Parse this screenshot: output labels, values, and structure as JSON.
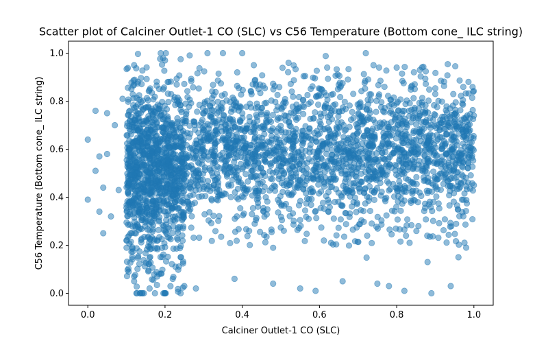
{
  "chart_data": {
    "type": "scatter",
    "title": "Scatter plot of Calciner Outlet-1 CO (SLC) vs C56 Temperature (Bottom cone_ ILC string)",
    "xlabel": "Calciner Outlet-1 CO (SLC)",
    "ylabel": "C56 Temperature (Bottom cone_ ILC string)",
    "xlim": [
      -0.05,
      1.05
    ],
    "ylim": [
      -0.05,
      1.05
    ],
    "xticks": [
      "0.0",
      "0.2",
      "0.4",
      "0.6",
      "0.8",
      "1.0"
    ],
    "yticks": [
      "0.0",
      "0.2",
      "0.4",
      "0.6",
      "0.8",
      "1.0"
    ],
    "grid": false,
    "marker_color": "#1f77b4",
    "marker_alpha": 0.5,
    "series": [
      {
        "points_approx": [
          [
            0.0,
            0.64
          ],
          [
            0.0,
            0.39
          ],
          [
            0.02,
            0.76
          ],
          [
            0.02,
            0.51
          ],
          [
            0.03,
            0.34
          ],
          [
            0.03,
            0.57
          ],
          [
            0.04,
            0.25
          ],
          [
            0.04,
            0.44
          ],
          [
            0.05,
            0.75
          ],
          [
            0.05,
            0.58
          ],
          [
            0.06,
            0.32
          ],
          [
            0.07,
            0.7
          ],
          [
            0.08,
            0.43
          ],
          [
            0.09,
            0.81
          ],
          [
            0.1,
            0.22
          ],
          [
            0.12,
            0.95
          ],
          [
            0.12,
            0.05
          ],
          [
            0.14,
            0.0
          ],
          [
            0.16,
            0.02
          ],
          [
            0.18,
            0.07
          ],
          [
            0.2,
            0.97
          ],
          [
            0.2,
            0.0
          ],
          [
            0.22,
            0.06
          ],
          [
            0.25,
            0.03
          ],
          [
            0.28,
            0.02
          ],
          [
            0.31,
            1.0
          ],
          [
            0.35,
            1.0
          ],
          [
            0.38,
            0.06
          ],
          [
            0.4,
            1.0
          ],
          [
            0.43,
            0.95
          ],
          [
            0.48,
            0.04
          ],
          [
            0.52,
            0.96
          ],
          [
            0.55,
            0.02
          ],
          [
            0.59,
            0.01
          ],
          [
            0.62,
            0.94
          ],
          [
            0.66,
            0.05
          ],
          [
            0.72,
            1.0
          ],
          [
            0.74,
            0.95
          ],
          [
            0.75,
            0.04
          ],
          [
            0.78,
            0.03
          ],
          [
            0.8,
            0.94
          ],
          [
            0.82,
            0.01
          ],
          [
            0.86,
            0.93
          ],
          [
            0.88,
            0.13
          ],
          [
            0.89,
            0.0
          ],
          [
            0.9,
            0.83
          ],
          [
            0.94,
            0.03
          ],
          [
            0.96,
            0.15
          ],
          [
            0.97,
            0.79
          ],
          [
            0.98,
            0.19
          ],
          [
            1.0,
            0.74
          ],
          [
            1.0,
            0.45
          ]
        ],
        "dense_regions": [
          {
            "x_range": [
              0.1,
              1.0
            ],
            "y_mean": 0.58,
            "y_spread": 0.13
          },
          {
            "x_range": [
              0.1,
              0.25
            ],
            "y_mean": 0.45,
            "y_spread": 0.2
          }
        ]
      }
    ]
  }
}
